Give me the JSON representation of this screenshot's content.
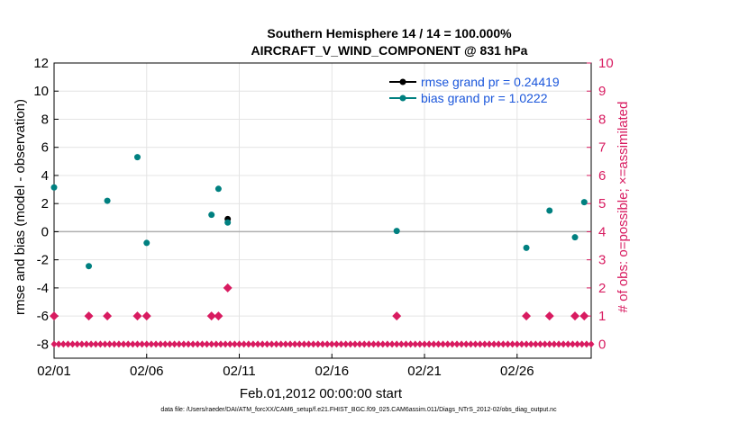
{
  "chart_data": {
    "type": "scatter",
    "title": "Southern Hemisphere 14 / 14 = 100.000%",
    "subtitle": "AIRCRAFT_V_WIND_COMPONENT @ 831 hPa",
    "xlabel": "Feb.01,2012 00:00:00 start",
    "ylabel": "rmse and bias (model - observation)",
    "ylabel_right": "# of obs: o=possible; ×=assimilated",
    "xlim": [
      0,
      29
    ],
    "ylim": [
      -9,
      12
    ],
    "ylim_right": [
      -0.5,
      10
    ],
    "x_ticks": [
      0,
      5,
      10,
      15,
      20,
      25
    ],
    "x_tick_labels": [
      "02/01",
      "02/06",
      "02/11",
      "02/16",
      "02/21",
      "02/26"
    ],
    "y_ticks": [
      -8,
      -6,
      -4,
      -2,
      0,
      2,
      4,
      6,
      8,
      10,
      12
    ],
    "y_tick_labels": [
      "-8",
      "-6",
      "-4",
      "-2",
      "0",
      "2",
      "4",
      "6",
      "8",
      "10",
      "12"
    ],
    "y_right_ticks": [
      0,
      1,
      2,
      3,
      4,
      5,
      6,
      7,
      8,
      9,
      10
    ],
    "y_right_tick_labels": [
      "0",
      "1",
      "2",
      "3",
      "4",
      "5",
      "6",
      "7",
      "8",
      "9",
      "10"
    ],
    "grid": true,
    "legend": [
      {
        "name": "rmse grand pr = 0.24419",
        "color": "#000000"
      },
      {
        "name": "bias grand pr = 1.0222",
        "color": "#008080"
      }
    ],
    "series": [
      {
        "name": "rmse",
        "color": "#000000",
        "x": [
          9.375
        ],
        "y": [
          0.9
        ]
      },
      {
        "name": "bias",
        "color": "#008080",
        "x": [
          0,
          1.875,
          2.875,
          4.5,
          5,
          8.5,
          8.875,
          9.375,
          18.5,
          25.5,
          26.75,
          28.125,
          28.625
        ],
        "y": [
          3.15,
          -2.45,
          2.2,
          5.3,
          -0.8,
          1.2,
          3.05,
          0.65,
          0.05,
          -1.15,
          1.5,
          -0.4,
          2.1
        ]
      },
      {
        "name": "obs possible",
        "color": "#d81b60",
        "axis": "right",
        "x": [
          0,
          1.875,
          2.875,
          4.5,
          5,
          8.5,
          8.875,
          9.375,
          18.5,
          25.5,
          26.75,
          28.125,
          28.625
        ],
        "y": [
          1,
          1,
          1,
          1,
          1,
          1,
          1,
          2,
          1,
          1,
          1,
          1,
          1
        ]
      },
      {
        "name": "obs assimilated",
        "color": "#d81b60",
        "axis": "right",
        "x_start": 0,
        "x_end": 29,
        "x_step": 0.25,
        "y": 0
      }
    ],
    "zero_line_color": "#b0b0b0",
    "footer": "data file: /Users/raeder/DAI/ATM_forcXX/CAM6_setup/f.e21.FHIST_BGC.f09_025.CAM6assim.011/Diags_NTrS_2012-02/obs_diag_output.nc"
  }
}
